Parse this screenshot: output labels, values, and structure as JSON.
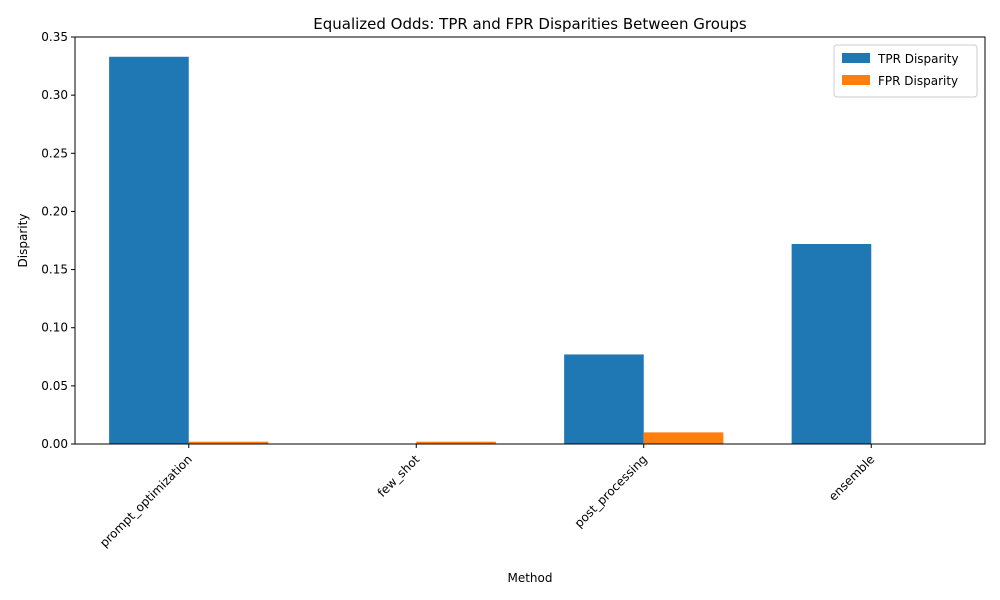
{
  "chart_data": {
    "type": "bar",
    "title": "Equalized Odds: TPR and FPR Disparities Between Groups",
    "xlabel": "Method",
    "ylabel": "Disparity",
    "categories": [
      "prompt_optimization",
      "few_shot",
      "post_processing",
      "ensemble"
    ],
    "series": [
      {
        "name": "TPR Disparity",
        "color": "#1f77b4",
        "values": [
          0.333,
          0.0,
          0.077,
          0.172
        ]
      },
      {
        "name": "FPR Disparity",
        "color": "#ff7f0e",
        "values": [
          0.002,
          0.002,
          0.01,
          0.0
        ]
      }
    ],
    "ylim": [
      0,
      0.35
    ],
    "yticks": [
      "0.00",
      "0.05",
      "0.10",
      "0.15",
      "0.20",
      "0.25",
      "0.30",
      "0.35"
    ],
    "ytick_values": [
      0,
      0.05,
      0.1,
      0.15,
      0.2,
      0.25,
      0.3,
      0.35
    ],
    "grid": false,
    "legend_position": "top-right",
    "xtick_rotation": 45
  }
}
